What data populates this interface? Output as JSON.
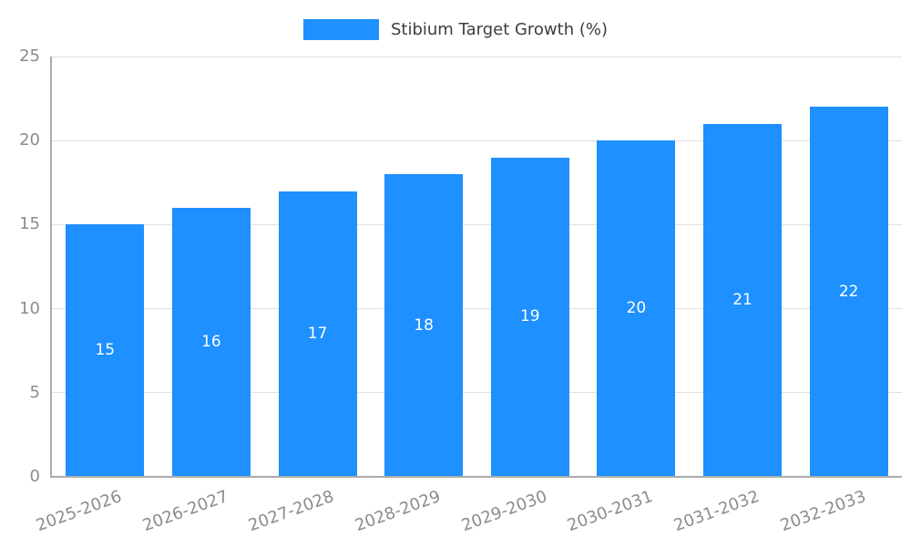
{
  "legend": {
    "label": "Stibium Target Growth (%)"
  },
  "chart_data": {
    "type": "bar",
    "title": "Stibium Target Growth (%)",
    "categories": [
      "2025-2026",
      "2026-2027",
      "2027-2028",
      "2028-2029",
      "2029-2030",
      "2030-2031",
      "2031-2032",
      "2032-2033"
    ],
    "values": [
      15,
      16,
      17,
      18,
      19,
      20,
      21,
      22
    ],
    "xlabel": "",
    "ylabel": "",
    "ylim": [
      0,
      25
    ],
    "yticks": [
      0,
      5,
      10,
      15,
      20,
      25
    ],
    "grid": true,
    "legend_position": "top",
    "bar_color": "#1e90ff",
    "data_label_color": "#ffffff",
    "tick_label_color": "#8c8c8c"
  }
}
